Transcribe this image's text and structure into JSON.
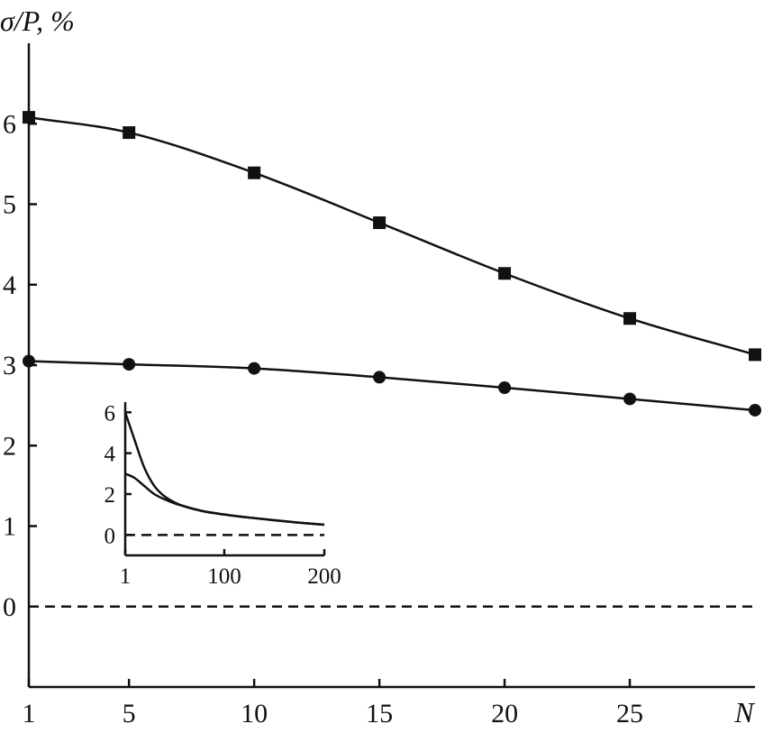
{
  "chart_data": [
    {
      "type": "line",
      "ylabel": "σ/P, %",
      "xlabel": "N",
      "xlim": [
        1,
        30
      ],
      "ylim": [
        -1,
        7
      ],
      "x_ticks": [
        1,
        5,
        10,
        15,
        20,
        25
      ],
      "x_tick_labels": [
        "1",
        "5",
        "10",
        "15",
        "20",
        "25"
      ],
      "y_ticks": [
        0,
        1,
        2,
        3,
        4,
        5,
        6
      ],
      "y_tick_labels": [
        "0",
        "1",
        "2",
        "3",
        "4",
        "5",
        "6"
      ],
      "grid": false,
      "reference_line": {
        "y": 0,
        "style": "dashed"
      },
      "series": [
        {
          "marker": "square",
          "x": [
            1,
            5,
            10,
            15,
            20,
            25,
            30
          ],
          "values": [
            6.08,
            5.89,
            5.39,
            4.77,
            4.14,
            3.58,
            3.13
          ]
        },
        {
          "marker": "circle",
          "x": [
            1,
            5,
            10,
            15,
            20,
            25,
            30
          ],
          "values": [
            3.05,
            3.01,
            2.96,
            2.85,
            2.72,
            2.58,
            2.44
          ]
        }
      ]
    },
    {
      "type": "line",
      "role": "inset",
      "xlim": [
        1,
        200
      ],
      "ylim": [
        -1,
        6.5
      ],
      "x_ticks": [
        1,
        100,
        200
      ],
      "x_tick_labels": [
        "1",
        "100",
        "200"
      ],
      "y_ticks": [
        0,
        2,
        4,
        6
      ],
      "y_tick_labels": [
        "0",
        "2",
        "4",
        "6"
      ],
      "reference_line": {
        "y": 0,
        "style": "dashed"
      },
      "series": [
        {
          "x": [
            1,
            10,
            20,
            30,
            40,
            50,
            60,
            80,
            100,
            125,
            150,
            175,
            200
          ],
          "values": [
            6.0,
            4.7,
            3.3,
            2.4,
            1.9,
            1.6,
            1.4,
            1.15,
            1.0,
            0.85,
            0.72,
            0.6,
            0.5
          ]
        },
        {
          "x": [
            1,
            10,
            20,
            30,
            40,
            50,
            60,
            80,
            100,
            125,
            150,
            175,
            200
          ],
          "values": [
            3.0,
            2.8,
            2.4,
            2.0,
            1.75,
            1.55,
            1.4,
            1.15,
            1.0,
            0.85,
            0.72,
            0.6,
            0.5
          ]
        }
      ]
    }
  ]
}
